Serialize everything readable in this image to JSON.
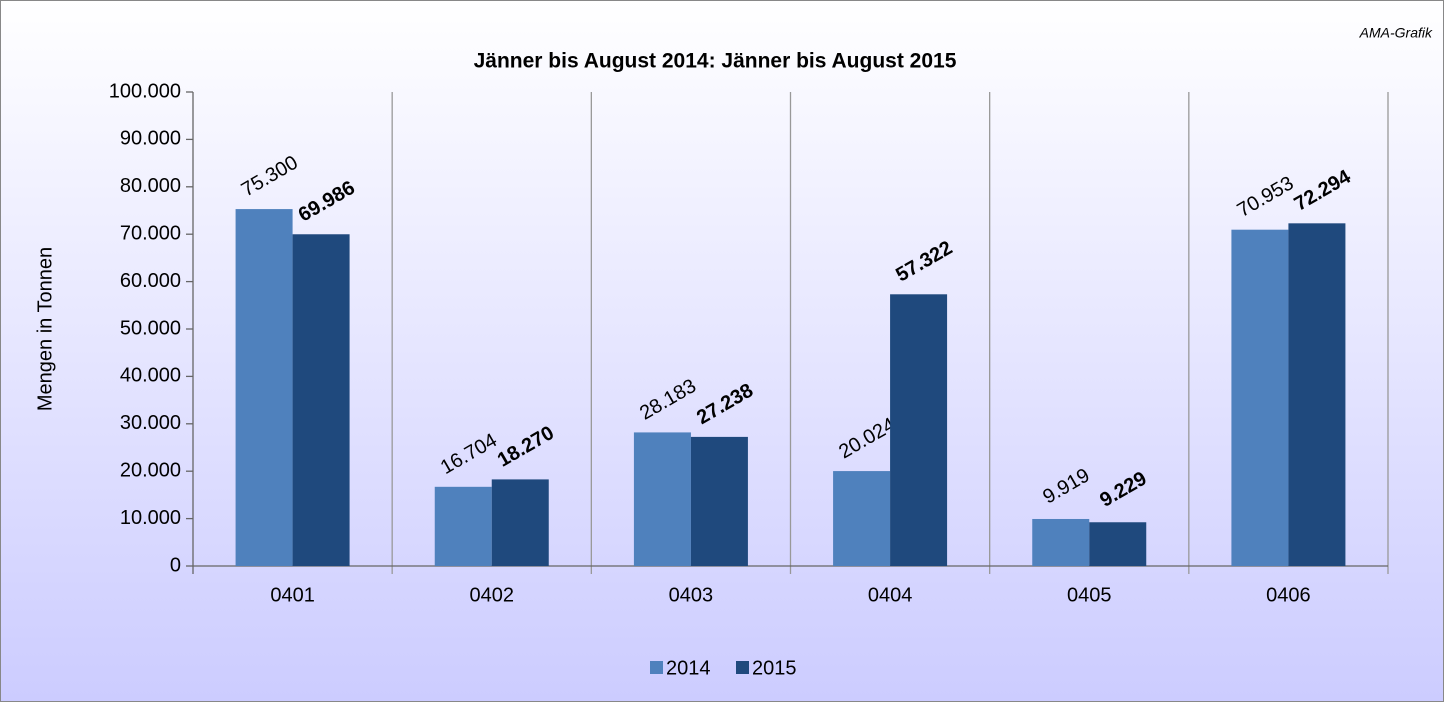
{
  "chart_data": {
    "type": "bar",
    "title": "Jänner bis August 2014: Jänner bis August 2015",
    "annotation": "AMA-Grafik",
    "y_label": "Mengen in Tonnen",
    "categories": [
      "0401",
      "0402",
      "0403",
      "0404",
      "0405",
      "0406"
    ],
    "series": [
      {
        "name": "2014",
        "color": "#4f81bd",
        "values": [
          75300,
          16704,
          28183,
          20024,
          9919,
          70953
        ],
        "value_labels": [
          "75.300",
          "16.704",
          "28.183",
          "20.024",
          "9.919",
          "70.953"
        ]
      },
      {
        "name": "2015",
        "color": "#1f497d",
        "values": [
          69986,
          18270,
          27238,
          57322,
          9229,
          72294
        ],
        "value_labels": [
          "69.986",
          "18.270",
          "27.238",
          "57.322",
          "9.229",
          "72.294"
        ],
        "bold_labels": true
      }
    ],
    "ylim": [
      0,
      100000
    ],
    "yticks": [
      0,
      {
        "value": 10000,
        "label": "10.000"
      },
      {
        "value": 20000,
        "label": "20.000"
      },
      {
        "value": 30000,
        "label": "30.000"
      },
      {
        "value": 40000,
        "label": "40.000"
      },
      {
        "value": 50000,
        "label": "50.000"
      },
      {
        "value": 60000,
        "label": "60.000"
      },
      {
        "value": 70000,
        "label": "70.000"
      },
      {
        "value": 80000,
        "label": "80.000"
      },
      {
        "value": 90000,
        "label": "90.000"
      },
      {
        "value": 100000,
        "label": "100.000"
      }
    ],
    "legend": "bottom"
  }
}
